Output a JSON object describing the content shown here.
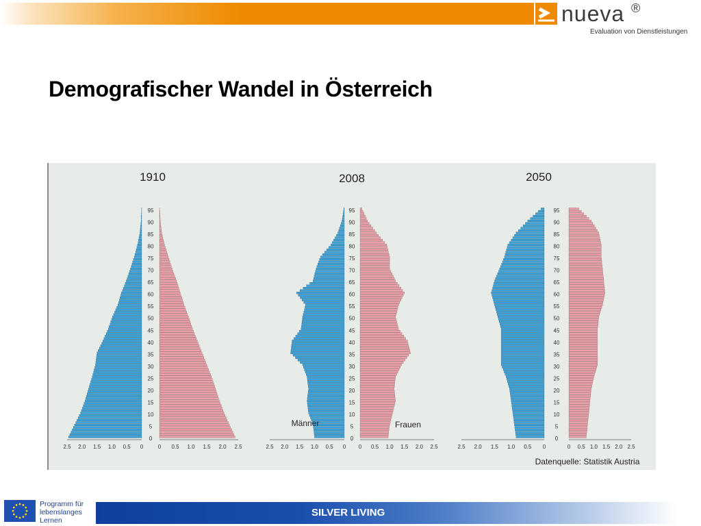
{
  "slide": {
    "title": "Demografischer Wandel in Österreich",
    "footer_label": "SILVER LIVING"
  },
  "branding": {
    "logo_word": "nueva",
    "logo_reg": "®",
    "logo_tagline": "Evaluation von Dienstleistungen",
    "eu_program_lines": [
      "Programm für",
      "lebenslanges",
      "Lernen"
    ],
    "accent_orange": "#ee8a00",
    "footer_blue": "#0f3f9e"
  },
  "chart_data": [
    {
      "type": "bar",
      "title": "1910",
      "orientation": "population-pyramid",
      "age_ticks": [
        "0",
        "5",
        "10",
        "15",
        "20",
        "25",
        "30",
        "35",
        "40",
        "45",
        "50",
        "55",
        "60",
        "65",
        "70",
        "75",
        "80",
        "85",
        "90",
        "95"
      ],
      "x_ticks_left": [
        "2.5",
        "2.0",
        "1.5",
        "1.0",
        "0.5",
        "0"
      ],
      "x_ticks_right": [
        "0",
        "0.5",
        "1.0",
        "1.5",
        "2.0",
        "2.5"
      ],
      "xlim": [
        0,
        2.5
      ],
      "series": [
        {
          "name": "Männer",
          "side": "left",
          "color": "#3aa0d6",
          "ages": [
            0,
            5,
            10,
            15,
            20,
            25,
            30,
            35,
            40,
            45,
            50,
            55,
            60,
            65,
            70,
            75,
            80,
            85,
            90,
            95
          ],
          "values": [
            2.45,
            2.25,
            2.05,
            1.9,
            1.78,
            1.66,
            1.55,
            1.5,
            1.3,
            1.12,
            0.98,
            0.8,
            0.68,
            0.52,
            0.38,
            0.25,
            0.14,
            0.06,
            0.02,
            0.005
          ]
        },
        {
          "name": "Frauen",
          "side": "right",
          "color": "#e8a0a8",
          "ages": [
            0,
            5,
            10,
            15,
            20,
            25,
            30,
            35,
            40,
            45,
            50,
            55,
            60,
            65,
            70,
            75,
            80,
            85,
            90,
            95
          ],
          "values": [
            2.4,
            2.22,
            2.05,
            1.9,
            1.78,
            1.65,
            1.5,
            1.35,
            1.2,
            1.05,
            0.92,
            0.78,
            0.66,
            0.54,
            0.4,
            0.28,
            0.16,
            0.07,
            0.025,
            0.006
          ]
        }
      ]
    },
    {
      "type": "bar",
      "title": "2008",
      "orientation": "population-pyramid",
      "age_ticks": [
        "0",
        "5",
        "10",
        "15",
        "20",
        "25",
        "30",
        "35",
        "40",
        "45",
        "50",
        "55",
        "60",
        "65",
        "70",
        "75",
        "80",
        "85",
        "90",
        "95"
      ],
      "x_ticks_left": [
        "2.5",
        "2.0",
        "1.5",
        "1.0",
        "0.5",
        "0"
      ],
      "x_ticks_right": [
        "0",
        "0.5",
        "1.0",
        "1.5",
        "2.0",
        "2.5"
      ],
      "xlim": [
        0,
        2.5
      ],
      "labels": {
        "left": "Männer",
        "right": "Frauen"
      },
      "series": [
        {
          "name": "Männer",
          "side": "left",
          "color": "#3aa0d6",
          "ages": [
            0,
            5,
            10,
            15,
            20,
            25,
            30,
            35,
            40,
            45,
            50,
            55,
            60,
            65,
            70,
            75,
            80,
            85,
            90,
            95
          ],
          "values": [
            1.0,
            1.05,
            1.2,
            1.25,
            1.2,
            1.25,
            1.4,
            1.8,
            1.75,
            1.45,
            1.4,
            1.3,
            1.6,
            1.05,
            0.95,
            0.8,
            0.45,
            0.22,
            0.08,
            0.02
          ]
        },
        {
          "name": "Frauen",
          "side": "right",
          "color": "#e8a0a8",
          "ages": [
            0,
            5,
            10,
            15,
            20,
            25,
            30,
            35,
            40,
            45,
            50,
            55,
            60,
            65,
            70,
            75,
            80,
            85,
            90,
            95
          ],
          "values": [
            0.95,
            1.0,
            1.1,
            1.2,
            1.15,
            1.2,
            1.4,
            1.7,
            1.6,
            1.3,
            1.2,
            1.3,
            1.5,
            1.2,
            1.0,
            1.0,
            0.9,
            0.55,
            0.25,
            0.06
          ]
        }
      ]
    },
    {
      "type": "bar",
      "title": "2050",
      "orientation": "population-pyramid",
      "age_ticks": [
        "0",
        "5",
        "10",
        "15",
        "20",
        "25",
        "30",
        "35",
        "40",
        "45",
        "50",
        "55",
        "60",
        "65",
        "70",
        "75",
        "80",
        "85",
        "90",
        "95"
      ],
      "x_ticks_left": [
        "2.5",
        "2.0",
        "1.5",
        "1.0",
        "0.5",
        "0"
      ],
      "x_ticks_right": [
        "0",
        "0.5",
        "1.0",
        "1.5",
        "2.0",
        "2.5"
      ],
      "xlim": [
        0,
        2.5
      ],
      "source_note": "Datenquelle: Statistik Austria",
      "series": [
        {
          "name": "Männer",
          "side": "left",
          "color": "#3aa0d6",
          "ages": [
            0,
            5,
            10,
            15,
            20,
            25,
            30,
            35,
            40,
            45,
            50,
            55,
            60,
            65,
            70,
            75,
            80,
            85,
            90,
            95
          ],
          "values": [
            0.85,
            0.9,
            0.95,
            1.0,
            1.05,
            1.15,
            1.3,
            1.3,
            1.3,
            1.3,
            1.4,
            1.5,
            1.6,
            1.5,
            1.35,
            1.2,
            1.1,
            0.85,
            0.5,
            0.1
          ]
        },
        {
          "name": "Frauen",
          "side": "right",
          "color": "#e8a0a8",
          "ages": [
            0,
            5,
            10,
            15,
            20,
            25,
            30,
            35,
            40,
            45,
            50,
            55,
            60,
            65,
            70,
            75,
            80,
            85,
            90,
            95
          ],
          "values": [
            0.7,
            0.75,
            0.8,
            0.85,
            0.9,
            1.0,
            1.15,
            1.15,
            1.15,
            1.15,
            1.2,
            1.35,
            1.45,
            1.4,
            1.35,
            1.3,
            1.3,
            1.2,
            0.9,
            0.4
          ]
        }
      ]
    }
  ]
}
